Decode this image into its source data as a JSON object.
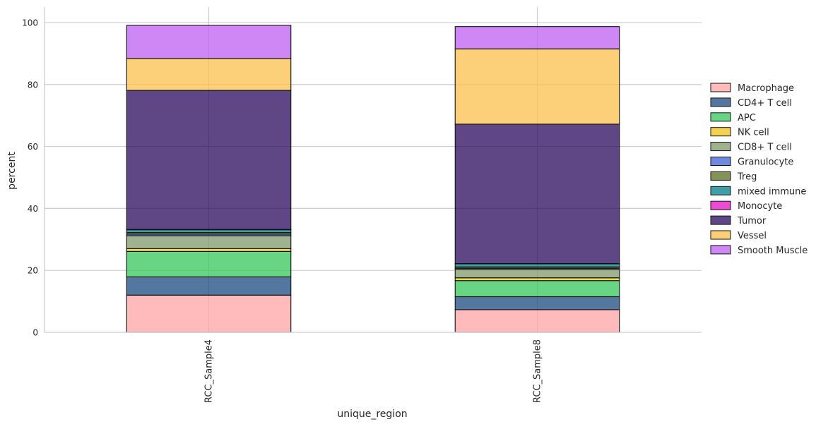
{
  "chart_data": {
    "type": "bar",
    "stacked": true,
    "categories": [
      "RCC_Sample4",
      "RCC_Sample8"
    ],
    "xlabel": "unique_region",
    "ylabel": "percent",
    "ylim": [
      0,
      105
    ],
    "yticks": [
      0,
      20,
      40,
      60,
      80,
      100
    ],
    "grid": true,
    "legend_position": "right",
    "series": [
      {
        "name": "Macrophage",
        "color": "#ffa3a6",
        "values": [
          12.0,
          7.3
        ]
      },
      {
        "name": "CD4+ T cell",
        "color": "#1b4a7f",
        "values": [
          5.9,
          4.2
        ]
      },
      {
        "name": "APC",
        "color": "#34c759",
        "values": [
          8.2,
          5.2
        ]
      },
      {
        "name": "NK cell",
        "color": "#f0c419",
        "values": [
          0.9,
          0.9
        ]
      },
      {
        "name": "CD8+ T cell",
        "color": "#7f9a6b",
        "values": [
          4.2,
          2.8
        ]
      },
      {
        "name": "Granulocyte",
        "color": "#3f62d6",
        "values": [
          0.5,
          0.3
        ]
      },
      {
        "name": "Treg",
        "color": "#5c6f20",
        "values": [
          0.5,
          0.4
        ]
      },
      {
        "name": "mixed immune",
        "color": "#007f86",
        "values": [
          0.9,
          1.0
        ]
      },
      {
        "name": "Monocyte",
        "color": "#e610c4",
        "values": [
          0.1,
          0.1
        ]
      },
      {
        "name": "Tumor",
        "color": "#2a0a5c",
        "values": [
          44.9,
          45.0
        ]
      },
      {
        "name": "Vessel",
        "color": "#fbc04b",
        "values": [
          10.3,
          24.3
        ]
      },
      {
        "name": "Smooth Muscle",
        "color": "#be5ff0",
        "values": [
          10.7,
          7.2
        ]
      }
    ]
  }
}
